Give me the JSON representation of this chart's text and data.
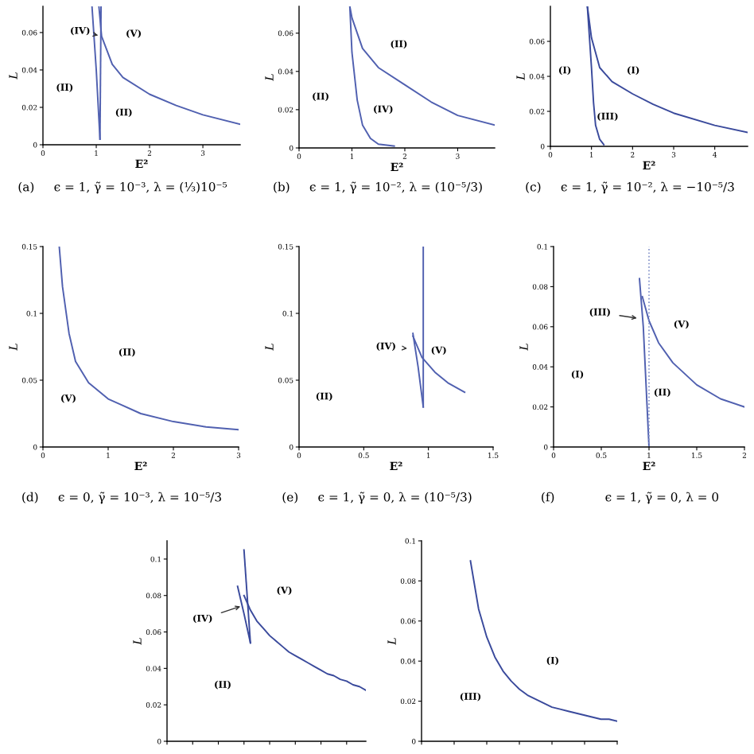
{
  "chart_data": [
    {
      "type": "line",
      "title": "(a)     ϵ = 1, γ̃ = 10⁻³, λ = (⅓)10⁻⁵",
      "xlabel": "E²",
      "ylabel": "L",
      "xlim": [
        0,
        3.7
      ],
      "ylim": [
        0,
        0.074
      ],
      "xticks": [
        0,
        1,
        2,
        3
      ],
      "yticks": [
        0,
        0.02,
        0.04,
        0.06
      ],
      "series": [
        {
          "color": "#5060b0",
          "x": [
            1.05,
            1.1,
            1.3,
            1.5,
            2,
            2.5,
            3,
            3.7
          ],
          "values": [
            0.074,
            0.058,
            0.043,
            0.036,
            0.027,
            0.021,
            0.016,
            0.011
          ]
        },
        {
          "color": "#5060b0",
          "x": [
            0.92,
            1.0,
            1.07
          ],
          "values": [
            0.074,
            0.04,
            0.003
          ]
        },
        {
          "color": "#5060b0",
          "x": [
            1.09,
            1.07
          ],
          "values": [
            0.074,
            0.003
          ]
        }
      ],
      "annotations": [
        "(IV)",
        "(V)",
        "(II)",
        "(II)"
      ]
    },
    {
      "type": "line",
      "title": "(b)     ϵ = 1, γ̃ = 10⁻², λ = (10⁻⁵/3)",
      "xlabel": "E²",
      "ylabel": "L",
      "xlim": [
        0,
        3.7
      ],
      "ylim": [
        0,
        0.074
      ],
      "xticks": [
        0,
        1,
        2,
        3
      ],
      "yticks": [
        0,
        0.02,
        0.04,
        0.06
      ],
      "series": [
        {
          "color": "#5060b0",
          "x": [
            0.96,
            1.0,
            1.2,
            1.5,
            2,
            2.5,
            3,
            3.7
          ],
          "values": [
            0.074,
            0.068,
            0.052,
            0.042,
            0.033,
            0.024,
            0.017,
            0.012
          ]
        },
        {
          "color": "#5060b0",
          "x": [
            0.96,
            1.0,
            1.1,
            1.2,
            1.35,
            1.5,
            1.8
          ],
          "values": [
            0.074,
            0.05,
            0.025,
            0.012,
            0.005,
            0.002,
            0.001
          ]
        }
      ],
      "annotations": [
        "(II)",
        "(II)",
        "(IV)"
      ]
    },
    {
      "type": "line",
      "title": "(c)     ϵ = 1, γ̃ = 10⁻², λ = −10⁻⁵/3",
      "xlabel": "E²",
      "ylabel": "L",
      "xlim": [
        0,
        4.8
      ],
      "ylim": [
        0,
        0.08
      ],
      "xticks": [
        0,
        1,
        2,
        3,
        4
      ],
      "yticks": [
        0,
        0.02,
        0.04,
        0.06
      ],
      "series": [
        {
          "color": "#3a4a9c",
          "x": [
            0.9,
            1.0,
            1.2,
            1.5,
            2,
            2.5,
            3,
            4,
            4.8
          ],
          "values": [
            0.08,
            0.062,
            0.045,
            0.037,
            0.03,
            0.024,
            0.019,
            0.012,
            0.008
          ]
        },
        {
          "color": "#3a4a9c",
          "x": [
            0.9,
            1.0,
            1.05,
            1.1,
            1.2,
            1.3
          ],
          "values": [
            0.08,
            0.045,
            0.025,
            0.012,
            0.004,
            0.001
          ]
        }
      ],
      "annotations": [
        "(I)",
        "(I)",
        "(III)"
      ]
    },
    {
      "type": "line",
      "title": "(d)     ϵ = 0, γ̃ = 10⁻³, λ = 10⁻⁵/3",
      "xlabel": "E²",
      "ylabel": "L",
      "xlim": [
        0,
        3
      ],
      "ylim": [
        0,
        0.15
      ],
      "xticks": [
        0,
        1,
        2,
        3
      ],
      "yticks": [
        0,
        0.05,
        0.1,
        0.15
      ],
      "series": [
        {
          "color": "#5060b0",
          "x": [
            0.25,
            0.3,
            0.4,
            0.5,
            0.7,
            1,
            1.5,
            2,
            2.5,
            3
          ],
          "values": [
            0.15,
            0.12,
            0.085,
            0.064,
            0.048,
            0.036,
            0.025,
            0.019,
            0.015,
            0.013
          ]
        }
      ],
      "annotations": [
        "(II)",
        "(V)"
      ]
    },
    {
      "type": "line",
      "title": "(e)     ϵ = 1, γ̃ = 0, λ = (10⁻⁵/3)",
      "xlabel": "E²",
      "ylabel": "L",
      "xlim": [
        0,
        1.5
      ],
      "ylim": [
        0,
        0.15
      ],
      "xticks": [
        0,
        0.5,
        1,
        1.5
      ],
      "yticks": [
        0,
        0.05,
        0.1,
        0.15
      ],
      "series": [
        {
          "color": "#5060b0",
          "x": [
            0.96,
            0.96
          ],
          "values": [
            0.15,
            0.03
          ]
        },
        {
          "color": "#5060b0",
          "x": [
            0.88,
            0.92,
            0.96
          ],
          "values": [
            0.085,
            0.06,
            0.03
          ]
        },
        {
          "color": "#5060b0",
          "x": [
            0.88,
            0.95,
            1.05,
            1.15,
            1.28
          ],
          "values": [
            0.083,
            0.067,
            0.056,
            0.048,
            0.041
          ]
        }
      ],
      "annotations": [
        "(IV)",
        "(V)",
        "(II)"
      ]
    },
    {
      "type": "line",
      "title": "(f)             ϵ = 1, γ̃ = 0, λ = 0",
      "xlabel": "E²",
      "ylabel": "L",
      "xlim": [
        0,
        2
      ],
      "ylim": [
        0,
        0.1
      ],
      "xticks": [
        0,
        0.5,
        1,
        1.5,
        2
      ],
      "yticks": [
        0,
        0.02,
        0.04,
        0.06,
        0.08,
        0.1
      ],
      "ref_lines": [
        {
          "axis": "x",
          "value": 1,
          "line_style": "dotted",
          "color": "#8090c8"
        }
      ],
      "series": [
        {
          "color": "#5060b0",
          "x": [
            0.9,
            0.94,
            0.97,
            1.0
          ],
          "values": [
            0.084,
            0.06,
            0.03,
            0.0
          ]
        },
        {
          "color": "#5060b0",
          "x": [
            0.93,
            1.0,
            1.1,
            1.25,
            1.5,
            1.75,
            2
          ],
          "values": [
            0.075,
            0.063,
            0.052,
            0.042,
            0.031,
            0.024,
            0.02
          ]
        }
      ],
      "annotations": [
        "(III)",
        "(V)",
        "(I)",
        "(II)"
      ]
    },
    {
      "type": "line",
      "ylabel": "L",
      "categories": [
        null,
        null,
        null,
        null,
        null,
        null,
        null,
        null,
        null,
        null,
        null,
        null,
        null,
        null,
        null,
        null,
        null,
        null,
        null,
        null,
        null,
        null,
        null,
        null,
        null,
        null,
        null,
        null,
        null,
        null,
        null,
        null
      ],
      "ylim": [
        0,
        0.11
      ],
      "yticks": [
        0,
        0.02,
        0.04,
        0.06,
        0.08,
        0.1
      ],
      "series": [
        {
          "color": "#3a4a9c",
          "values": [
            null,
            null,
            null,
            null,
            null,
            null,
            null,
            null,
            null,
            null,
            null,
            null,
            0.105,
            0.054,
            null,
            null,
            null,
            null,
            null,
            null,
            null,
            null,
            null,
            null,
            null,
            null,
            null,
            null,
            null,
            null,
            null,
            null
          ]
        },
        {
          "color": "#3a4a9c",
          "values": [
            null,
            null,
            null,
            null,
            null,
            null,
            null,
            null,
            null,
            null,
            null,
            0.085,
            0.07,
            0.054,
            null,
            null,
            null,
            null,
            null,
            null,
            null,
            null,
            null,
            null,
            null,
            null,
            null,
            null,
            null,
            null,
            null,
            null
          ]
        },
        {
          "color": "#3a4a9c",
          "values": [
            null,
            null,
            null,
            null,
            null,
            null,
            null,
            null,
            null,
            null,
            null,
            null,
            0.08,
            0.072,
            0.066,
            0.062,
            0.058,
            0.055,
            0.052,
            0.049,
            0.047,
            0.045,
            0.043,
            0.041,
            0.039,
            0.037,
            0.036,
            0.034,
            0.033,
            0.031,
            0.03,
            0.028
          ]
        }
      ],
      "annotations": [
        "(IV)",
        "(V)",
        "(II)"
      ]
    },
    {
      "type": "line",
      "ylabel": "L",
      "categories": [
        null,
        null,
        null,
        null,
        null,
        null,
        null,
        null,
        null,
        null,
        null,
        null,
        null,
        null,
        null,
        null,
        null,
        null,
        null,
        null,
        null,
        null,
        null,
        null,
        null
      ],
      "ylim": [
        0,
        0.1
      ],
      "yticks": [
        0,
        0.02,
        0.04,
        0.06,
        0.08,
        0.1
      ],
      "series": [
        {
          "color": "#3a4a9c",
          "values": [
            null,
            null,
            null,
            null,
            null,
            null,
            0.09,
            0.066,
            0.052,
            0.042,
            0.035,
            0.03,
            0.026,
            0.023,
            0.021,
            0.019,
            0.017,
            0.016,
            0.015,
            0.014,
            0.013,
            0.012,
            0.011,
            0.011,
            0.01
          ]
        }
      ],
      "annotations": [
        "(I)",
        "(III)"
      ]
    }
  ]
}
